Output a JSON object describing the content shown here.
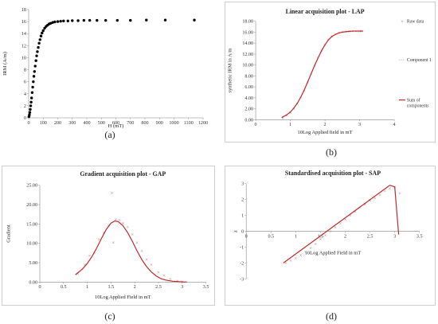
{
  "captions": {
    "a": "(a)",
    "b": "(b)",
    "c": "(c)",
    "d": "(d)"
  },
  "chart_data": [
    {
      "id": "a",
      "type": "scatter",
      "title": "",
      "xlabel": "H (mT)",
      "ylabel": "IRM (A/m)",
      "xlim": [
        0,
        1200
      ],
      "ylim": [
        0,
        18
      ],
      "xticks": [
        0,
        100,
        200,
        300,
        400,
        500,
        600,
        700,
        800,
        900,
        1000,
        1100,
        1200
      ],
      "yticks": [
        0,
        2,
        4,
        6,
        8,
        10,
        12,
        14,
        16,
        18
      ],
      "grid": false,
      "series": [
        {
          "x": [
            2,
            5,
            8,
            11,
            14,
            17,
            20,
            24,
            28,
            32,
            36,
            40,
            45,
            50,
            55,
            60,
            66,
            72,
            78,
            85,
            92,
            100,
            110,
            120,
            130,
            140,
            150,
            165,
            180,
            200,
            220,
            240,
            270,
            300,
            340,
            380,
            420,
            470,
            530,
            610,
            700,
            810,
            940,
            1140
          ],
          "y": [
            0.2,
            0.5,
            0.9,
            1.4,
            2.0,
            2.6,
            3.3,
            4.2,
            5.1,
            6.0,
            6.9,
            7.7,
            8.6,
            9.5,
            10.3,
            11.0,
            11.7,
            12.4,
            13.0,
            13.6,
            14.1,
            14.5,
            14.9,
            15.2,
            15.4,
            15.6,
            15.7,
            15.85,
            15.95,
            16.0,
            16.05,
            16.1,
            16.1,
            16.15,
            16.15,
            16.2,
            16.2,
            16.2,
            16.2,
            16.2,
            16.2,
            16.25,
            16.25,
            16.25
          ]
        }
      ]
    },
    {
      "id": "b",
      "type": "line",
      "title": "Linear acquisition plot - LAP",
      "xlabel": "10Log Applied field in mT",
      "ylabel": "synthetic IRM in A/m",
      "xlim": [
        0,
        4
      ],
      "ylim": [
        0,
        18
      ],
      "xticks": [
        0,
        1,
        2,
        3,
        4
      ],
      "yticks": [
        "0.00",
        "2.00",
        "4.00",
        "6.00",
        "8.00",
        "10.00",
        "12.00",
        "14.00",
        "16.00",
        "18.00"
      ],
      "legend_position": "right",
      "legend": [
        "Raw data",
        "Component 1",
        "Sum of components"
      ],
      "series": [
        {
          "name": "Raw data",
          "x": [
            0.78,
            0.9,
            1.0,
            1.1,
            1.2,
            1.3,
            1.4,
            1.5,
            1.6,
            1.7,
            1.8,
            1.9,
            2.0,
            2.1,
            2.2,
            2.3,
            2.4,
            2.5,
            2.6,
            2.7,
            2.8,
            2.9,
            3.0,
            3.05
          ],
          "y": [
            0.3,
            0.8,
            1.3,
            2.0,
            2.9,
            4.0,
            5.3,
            6.8,
            8.4,
            9.9,
            11.3,
            12.6,
            13.7,
            14.6,
            15.2,
            15.6,
            15.9,
            16.05,
            16.1,
            16.15,
            16.2,
            16.2,
            16.2,
            16.2
          ]
        },
        {
          "name": "Component 1",
          "x": [
            0.75,
            0.9,
            1.0,
            1.1,
            1.2,
            1.3,
            1.4,
            1.5,
            1.6,
            1.7,
            1.8,
            1.9,
            2.0,
            2.1,
            2.2,
            2.3,
            2.4,
            2.5,
            2.6,
            2.7,
            2.8,
            3.0,
            3.1
          ],
          "y": [
            0.4,
            0.9,
            1.4,
            2.1,
            3.0,
            4.1,
            5.4,
            6.9,
            8.4,
            9.9,
            11.3,
            12.6,
            13.7,
            14.6,
            15.2,
            15.6,
            15.85,
            16.0,
            16.1,
            16.15,
            16.2,
            16.2,
            16.2
          ]
        },
        {
          "name": "Sum of components",
          "x": [
            0.75,
            0.9,
            1.0,
            1.1,
            1.2,
            1.3,
            1.4,
            1.5,
            1.6,
            1.7,
            1.8,
            1.9,
            2.0,
            2.1,
            2.2,
            2.3,
            2.4,
            2.5,
            2.6,
            2.7,
            2.8,
            3.0,
            3.1
          ],
          "y": [
            0.4,
            0.9,
            1.4,
            2.1,
            3.0,
            4.1,
            5.4,
            6.9,
            8.4,
            9.9,
            11.3,
            12.6,
            13.7,
            14.6,
            15.2,
            15.6,
            15.85,
            16.0,
            16.1,
            16.15,
            16.2,
            16.2,
            16.2
          ]
        }
      ]
    },
    {
      "id": "c",
      "type": "line",
      "title": "Gradient acquisition plot - GAP",
      "xlabel": "10Log Applied Field in mT",
      "ylabel": "Gradient",
      "xlim": [
        0,
        3.5
      ],
      "ylim": [
        0,
        25
      ],
      "xticks": [
        0,
        0.5,
        1,
        1.5,
        2,
        2.5,
        3,
        3.5
      ],
      "yticks": [
        "0.00",
        "5.00",
        "10.00",
        "15.00",
        "20.00",
        "25.00"
      ],
      "series": [
        {
          "name": "Raw data",
          "x": [
            0.8,
            0.95,
            1.05,
            1.15,
            1.25,
            1.35,
            1.45,
            1.52,
            1.55,
            1.6,
            1.68,
            1.75,
            1.85,
            1.95,
            2.05,
            2.15,
            2.25,
            2.35,
            2.5,
            2.62,
            2.75,
            2.9,
            3.0
          ],
          "y": [
            2.2,
            4.5,
            6.8,
            7.5,
            11.0,
            12.8,
            14.6,
            23.0,
            10.2,
            16.2,
            16.0,
            15.2,
            14.2,
            12.3,
            10.2,
            8.0,
            5.8,
            4.5,
            2.5,
            1.7,
            0.8,
            0.3,
            0.1
          ]
        },
        {
          "name": "Sum of components",
          "x": [
            0.75,
            0.9,
            1.0,
            1.1,
            1.2,
            1.3,
            1.4,
            1.5,
            1.58,
            1.65,
            1.75,
            1.85,
            1.95,
            2.05,
            2.15,
            2.25,
            2.35,
            2.45,
            2.55,
            2.65,
            2.8,
            3.0,
            3.1
          ],
          "y": [
            1.9,
            3.4,
            4.8,
            6.6,
            8.8,
            11.3,
            13.6,
            15.2,
            15.8,
            15.6,
            14.6,
            12.8,
            10.5,
            8.0,
            5.8,
            4.0,
            2.6,
            1.6,
            0.9,
            0.5,
            0.2,
            0.05,
            0.0
          ]
        }
      ]
    },
    {
      "id": "d",
      "type": "line",
      "title": "Standardised acquisition plot - SAP",
      "xlabel": "10Log Applied Field in mT",
      "ylabel": "z",
      "xlim": [
        0,
        3.5
      ],
      "ylim": [
        -3,
        3
      ],
      "xticks": [
        0,
        0.5,
        1,
        1.5,
        2,
        2.5,
        3,
        3.5
      ],
      "yticks": [
        -3,
        -2,
        -1,
        0,
        1,
        2,
        3
      ],
      "series": [
        {
          "name": "Raw data",
          "x": [
            0.8,
            0.9,
            1.0,
            1.1,
            1.2,
            1.3,
            1.4,
            1.5,
            1.6,
            1.7,
            1.8,
            1.9,
            2.0,
            2.1,
            2.2,
            2.3,
            2.4,
            2.5,
            2.6,
            2.7,
            2.8,
            2.9,
            3.0,
            3.1
          ],
          "y": [
            -2.0,
            -1.85,
            -1.7,
            -1.5,
            -1.3,
            -1.05,
            -0.8,
            -0.5,
            -0.25,
            0.0,
            0.25,
            0.5,
            0.75,
            1.0,
            1.25,
            1.5,
            1.7,
            1.95,
            2.1,
            2.3,
            2.55,
            2.7,
            2.8,
            2.4
          ]
        },
        {
          "name": "Sum of components",
          "x": [
            0.75,
            2.9,
            3.0,
            3.08
          ],
          "y": [
            -2.0,
            2.9,
            2.8,
            -0.2
          ]
        }
      ]
    }
  ]
}
